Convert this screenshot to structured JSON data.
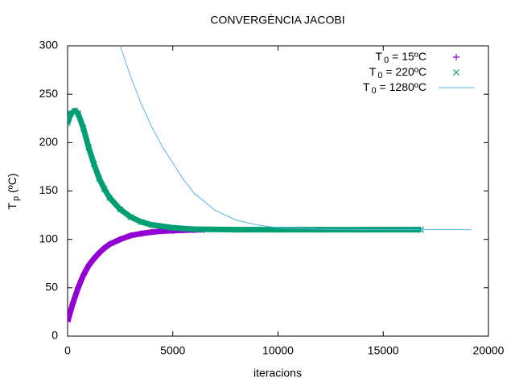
{
  "chart_data": {
    "type": "scatter",
    "title": "CONVERGÈNCIA JACOBI",
    "x_label": "iteracions",
    "y_label": "Tp (ºC)",
    "xlim": [
      0,
      20000
    ],
    "ylim": [
      0,
      300
    ],
    "xticks": [
      0,
      5000,
      10000,
      15000,
      20000
    ],
    "yticks": [
      0,
      50,
      100,
      150,
      200,
      250,
      300
    ],
    "legend": "top-right",
    "series": [
      {
        "name": "T0 = 15ºC",
        "color": "#9400d3",
        "marker": "+",
        "x": [
          0,
          250,
          500,
          750,
          1000,
          1250,
          1500,
          1750,
          2000,
          2500,
          3000,
          3500,
          4000,
          4500,
          5000,
          5500,
          6000,
          6500
        ],
        "values": [
          15,
          34,
          50,
          63,
          73,
          80,
          86,
          91,
          95,
          100,
          104,
          106,
          107.5,
          108.5,
          109,
          109.5,
          109.8,
          110
        ]
      },
      {
        "name": "T0 = 220ºC",
        "color": "#009e73",
        "marker": "x",
        "x": [
          0,
          150,
          350,
          500,
          750,
          1000,
          1250,
          1500,
          1750,
          2000,
          2500,
          3000,
          3500,
          4000,
          5000,
          6000,
          8000,
          10000,
          12000,
          14000,
          16800
        ],
        "values": [
          220,
          230,
          233,
          230,
          215,
          195,
          178,
          163,
          152,
          143,
          131,
          123,
          118,
          115,
          112,
          110.5,
          110,
          110,
          110,
          110,
          110
        ]
      },
      {
        "name": "T0 = 1280ºC",
        "color": "#56b4e9",
        "marker": "line",
        "x": [
          2500,
          3000,
          3500,
          4000,
          4500,
          5000,
          5500,
          6000,
          7000,
          8000,
          9000,
          10000,
          12000,
          15000,
          19200
        ],
        "values": [
          300,
          268,
          240,
          216,
          196,
          179,
          162,
          148,
          130,
          120,
          115,
          112,
          110.5,
          110,
          110
        ]
      }
    ]
  }
}
